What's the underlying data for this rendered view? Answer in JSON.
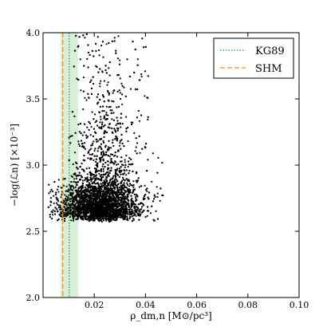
{
  "chart_data": {
    "type": "scatter",
    "title": "",
    "xlabel": "ρ_dm,n [M⊙/pc³]",
    "ylabel": "−log(ℒn) [×10⁻³]",
    "xlim": [
      0.0,
      0.1
    ],
    "ylim": [
      2.0,
      4.0
    ],
    "xticks": [
      0.02,
      0.04,
      0.06,
      0.08,
      0.1
    ],
    "xtick_labels": [
      "0.02",
      "0.04",
      "0.06",
      "0.08",
      "0.10"
    ],
    "yticks": [
      2.0,
      2.5,
      3.0,
      3.5,
      4.0
    ],
    "ytick_labels": [
      "2.0",
      "2.5",
      "3.0",
      "3.5",
      "4.0"
    ],
    "grid": false,
    "legend_position": "top-right",
    "legend": [
      {
        "label": "KG89",
        "style": "dotted",
        "color": "#2ca02c"
      },
      {
        "label": "SHM",
        "style": "dashed",
        "color": "#ff8c00"
      }
    ],
    "reference_lines": [
      {
        "name": "KG89",
        "x": 0.0102,
        "band": [
          0.0068,
          0.0138
        ],
        "color": "#2ca02c",
        "band_color": "#d8f0d8"
      },
      {
        "name": "SHM",
        "x": 0.0077,
        "color": "#ff8c00"
      }
    ],
    "scatter_cloud": {
      "description_of_density": "dense cluster",
      "core_x_range": [
        0.008,
        0.045
      ],
      "core_y_range": [
        2.55,
        3.0
      ],
      "peak": {
        "x": 0.022,
        "y": 2.68
      },
      "upper_tail_x_range": [
        0.01,
        0.037
      ],
      "upper_tail_y_max": 4.0,
      "n_points": 4500,
      "color": "#000000"
    }
  }
}
